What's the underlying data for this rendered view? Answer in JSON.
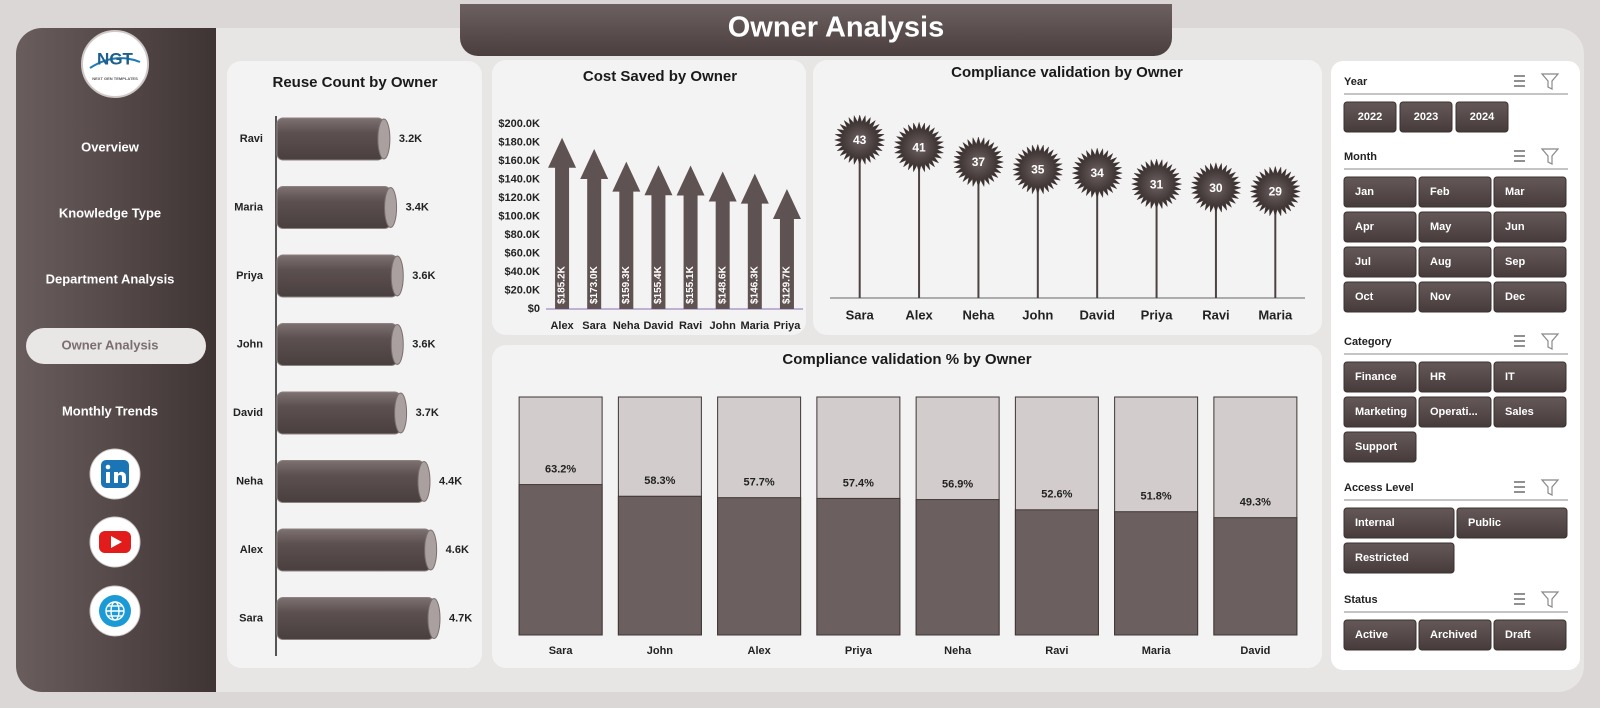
{
  "header": {
    "title": "Owner Analysis"
  },
  "nav": {
    "logo": "NGT",
    "logo_tagline": "NEXT GEN TEMPLATES",
    "items": [
      "Overview",
      "Knowledge Type",
      "Department Analysis",
      "Owner Analysis",
      "Monthly Trends"
    ],
    "active": 3
  },
  "chart_data": [
    {
      "type": "hbar",
      "title": "Reuse Count by Owner",
      "categories": [
        "Ravi",
        "Maria",
        "Priya",
        "John",
        "David",
        "Neha",
        "Alex",
        "Sara"
      ],
      "values": [
        3200,
        3400,
        3600,
        3600,
        3700,
        4400,
        4600,
        4700
      ],
      "value_labels": [
        "3.2K",
        "3.4K",
        "3.6K",
        "3.6K",
        "3.7K",
        "4.4K",
        "4.6K",
        "4.7K"
      ],
      "color": "#6b5f5f"
    },
    {
      "type": "arrow_column",
      "title": "Cost Saved by Owner",
      "categories": [
        "Alex",
        "Sara",
        "Neha",
        "David",
        "Ravi",
        "John",
        "Maria",
        "Priya"
      ],
      "values": [
        185200,
        173000,
        159300,
        155400,
        155100,
        148600,
        146300,
        129700
      ],
      "value_labels": [
        "$185.2K",
        "$173.0K",
        "$159.3K",
        "$155.4K",
        "$155.1K",
        "$148.6K",
        "$146.3K",
        "$129.7K"
      ],
      "color": "#5e5252",
      "ylim": [
        0,
        200000
      ],
      "yticks": [
        {
          "value": 0,
          "label": "$0"
        },
        {
          "value": 20000,
          "label": "$20.0K"
        },
        {
          "value": 40000,
          "label": "$40.0K"
        },
        {
          "value": 60000,
          "label": "$60.0K"
        },
        {
          "value": 80000,
          "label": "$80.0K"
        },
        {
          "value": 100000,
          "label": "$100.0K"
        },
        {
          "value": 120000,
          "label": "$120.0K"
        },
        {
          "value": 140000,
          "label": "$140.0K"
        },
        {
          "value": 160000,
          "label": "$160.0K"
        },
        {
          "value": 180000,
          "label": "$180.0K"
        },
        {
          "value": 200000,
          "label": "$200.0K"
        }
      ]
    },
    {
      "type": "lollipop",
      "title": "Compliance validation by Owner",
      "categories": [
        "Sara",
        "Alex",
        "Neha",
        "John",
        "David",
        "Priya",
        "Ravi",
        "Maria"
      ],
      "values": [
        43,
        41,
        37,
        35,
        34,
        31,
        30,
        29
      ],
      "color": "#4d4242"
    },
    {
      "type": "stacked_percent",
      "title": "Compliance validation % by Owner",
      "categories": [
        "Sara",
        "John",
        "Alex",
        "Priya",
        "Neha",
        "Ravi",
        "Maria",
        "David"
      ],
      "values": [
        63.2,
        58.3,
        57.7,
        57.4,
        56.9,
        52.6,
        51.8,
        49.3
      ],
      "value_labels": [
        "63.2%",
        "58.3%",
        "57.7%",
        "57.4%",
        "56.9%",
        "52.6%",
        "51.8%",
        "49.3%"
      ],
      "color": "#6b5f5f",
      "background_color": "#d3cccc",
      "ylim": [
        0,
        100
      ]
    }
  ],
  "slicers": [
    {
      "title": "Year",
      "options": [
        "2022",
        "2023",
        "2024"
      ]
    },
    {
      "title": "Month",
      "options": [
        "Jan",
        "Feb",
        "Mar",
        "Apr",
        "May",
        "Jun",
        "Jul",
        "Aug",
        "Sep",
        "Oct",
        "Nov",
        "Dec"
      ]
    },
    {
      "title": "Category",
      "options": [
        "Finance",
        "HR",
        "IT",
        "Marketing",
        "Operati...",
        "Sales",
        "Support"
      ]
    },
    {
      "title": "Access Level",
      "options": [
        "Internal",
        "Public",
        "Restricted"
      ]
    },
    {
      "title": "Status",
      "options": [
        "Active",
        "Archived",
        "Draft"
      ]
    }
  ]
}
